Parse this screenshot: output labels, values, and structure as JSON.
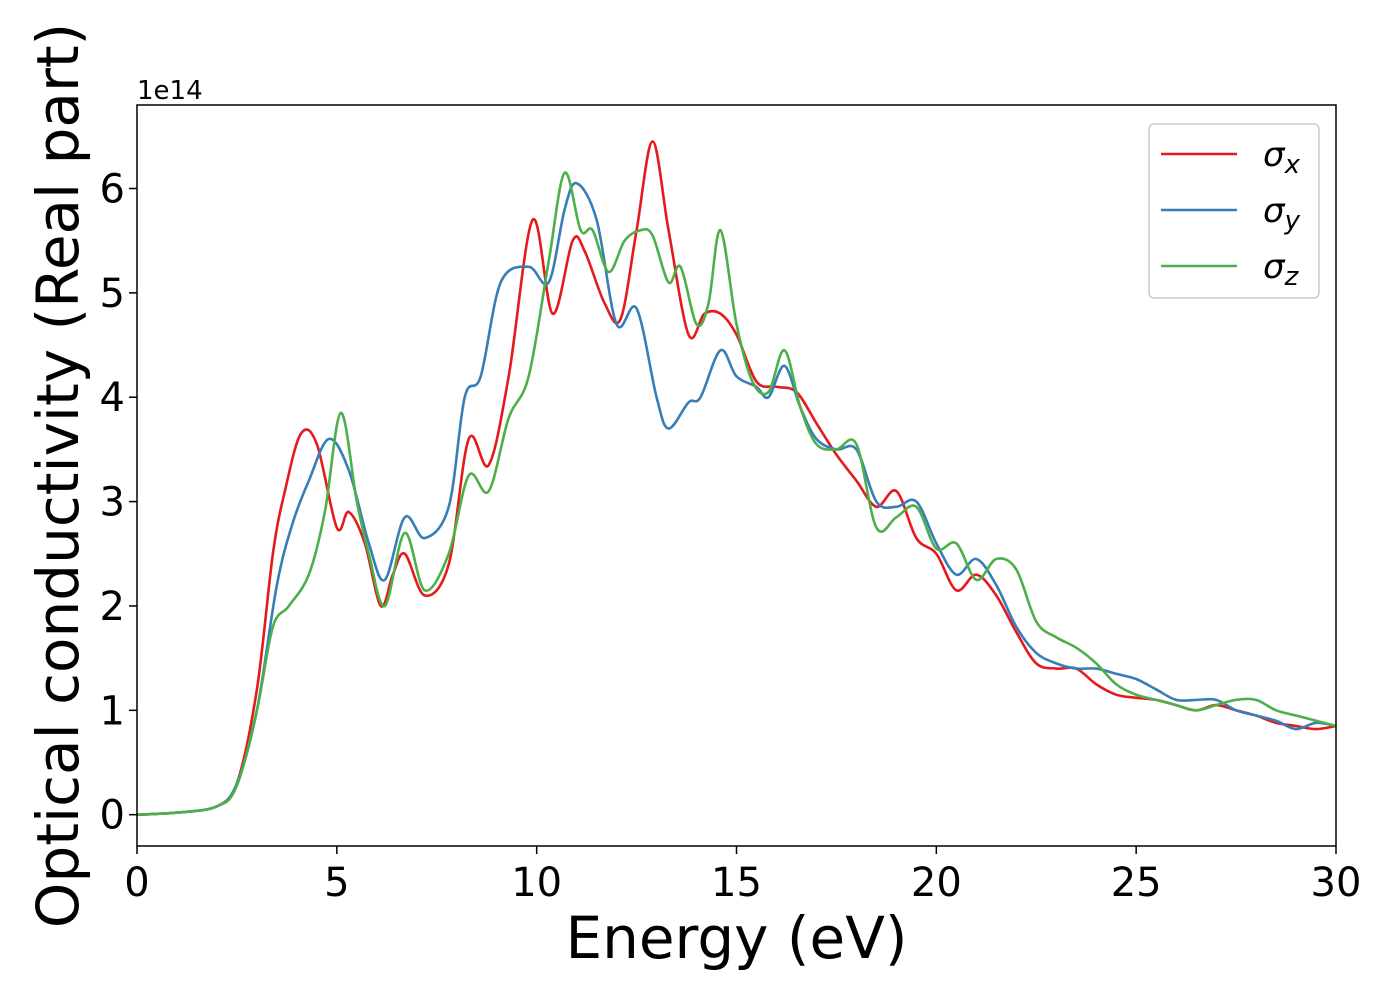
{
  "chart_data": {
    "type": "line",
    "xlabel": "Energy (eV)",
    "ylabel": "Optical conductivity (Real part)",
    "y_offset_text": "1e14",
    "xlim": [
      0,
      30
    ],
    "ylim": [
      -0.3,
      6.8
    ],
    "x_ticks": [
      0,
      5,
      10,
      15,
      20,
      25,
      30
    ],
    "x_tick_labels": [
      "0",
      "5",
      "10",
      "15",
      "20",
      "25",
      "30"
    ],
    "y_ticks": [
      0,
      1,
      2,
      3,
      4,
      5,
      6
    ],
    "y_tick_labels": [
      "0",
      "1",
      "2",
      "3",
      "4",
      "5",
      "6"
    ],
    "grid": false,
    "legend_position": "top-right",
    "series": [
      {
        "name": "σx",
        "legend_base": "σ",
        "legend_sub": "x",
        "color": "#e41a1c",
        "x": [
          0,
          1,
          2,
          2.5,
          3,
          3.4,
          3.7,
          4.1,
          4.5,
          5,
          5.3,
          5.7,
          6.1,
          6.4,
          6.7,
          7.2,
          7.8,
          8.3,
          8.8,
          9.3,
          9.9,
          10.4,
          10.9,
          11.2,
          11.7,
          12.1,
          12.5,
          12.9,
          13.3,
          13.8,
          14.2,
          14.6,
          15,
          15.5,
          16,
          16.5,
          17,
          17.5,
          18,
          18.5,
          19,
          19.5,
          20,
          20.5,
          21,
          21.5,
          22,
          22.5,
          23,
          23.5,
          24,
          24.5,
          25,
          25.5,
          26,
          26.5,
          27,
          27.5,
          28,
          28.5,
          29,
          29.5,
          30
        ],
        "y": [
          0,
          0.02,
          0.08,
          0.3,
          1.2,
          2.5,
          3.1,
          3.65,
          3.55,
          2.75,
          2.9,
          2.6,
          2.0,
          2.3,
          2.5,
          2.1,
          2.4,
          3.6,
          3.35,
          4.2,
          5.7,
          4.8,
          5.5,
          5.4,
          4.9,
          4.75,
          5.6,
          6.45,
          5.6,
          4.6,
          4.8,
          4.8,
          4.6,
          4.15,
          4.1,
          4.05,
          3.75,
          3.45,
          3.2,
          2.95,
          3.1,
          2.65,
          2.5,
          2.15,
          2.3,
          2.1,
          1.75,
          1.45,
          1.4,
          1.4,
          1.25,
          1.15,
          1.12,
          1.1,
          1.05,
          1.0,
          1.05,
          1.0,
          0.95,
          0.88,
          0.85,
          0.82,
          0.85
        ]
      },
      {
        "name": "σy",
        "legend_base": "σ",
        "legend_sub": "y",
        "color": "#377eb8",
        "x": [
          0,
          1,
          2,
          2.5,
          3,
          3.5,
          3.9,
          4.3,
          4.8,
          5.3,
          5.8,
          6.2,
          6.7,
          7.2,
          7.8,
          8.2,
          8.6,
          9.1,
          9.8,
          10.3,
          10.7,
          11.0,
          11.5,
          12.0,
          12.5,
          13.0,
          13.3,
          13.8,
          14.1,
          14.6,
          15.0,
          15.5,
          15.8,
          16.2,
          16.6,
          17,
          17.5,
          18,
          18.5,
          19,
          19.5,
          20,
          20.5,
          21,
          21.5,
          22,
          22.5,
          23,
          23.5,
          24,
          24.5,
          25,
          25.5,
          26,
          26.5,
          27,
          27.5,
          28,
          28.5,
          29,
          29.5,
          30
        ],
        "y": [
          0,
          0.02,
          0.08,
          0.3,
          1.0,
          2.2,
          2.8,
          3.2,
          3.6,
          3.3,
          2.6,
          2.25,
          2.85,
          2.65,
          2.95,
          4.0,
          4.2,
          5.1,
          5.25,
          5.1,
          5.8,
          6.05,
          5.7,
          4.7,
          4.85,
          4.0,
          3.7,
          3.95,
          4.0,
          4.45,
          4.2,
          4.1,
          4.0,
          4.3,
          3.9,
          3.6,
          3.5,
          3.5,
          3.0,
          2.95,
          3.0,
          2.6,
          2.3,
          2.45,
          2.2,
          1.8,
          1.55,
          1.45,
          1.4,
          1.4,
          1.35,
          1.3,
          1.2,
          1.1,
          1.1,
          1.1,
          1.0,
          0.95,
          0.9,
          0.82,
          0.88,
          0.85
        ]
      },
      {
        "name": "σz",
        "legend_base": "σ",
        "legend_sub": "z",
        "color": "#4daf4a",
        "x": [
          0,
          1,
          2,
          2.5,
          3,
          3.4,
          3.8,
          4.3,
          4.7,
          5.1,
          5.5,
          5.8,
          6.2,
          6.7,
          7.2,
          7.8,
          8.3,
          8.8,
          9.3,
          9.8,
          10.3,
          10.7,
          11.1,
          11.4,
          11.8,
          12.2,
          12.6,
          12.9,
          13.3,
          13.6,
          14.0,
          14.3,
          14.6,
          15.0,
          15.4,
          15.8,
          16.2,
          16.6,
          17,
          17.5,
          18,
          18.5,
          19,
          19.5,
          20,
          20.5,
          21,
          21.5,
          22,
          22.5,
          23,
          23.5,
          24,
          24.5,
          25,
          25.5,
          26,
          26.5,
          27,
          27.5,
          28,
          28.5,
          29,
          29.5,
          30
        ],
        "y": [
          0,
          0.02,
          0.08,
          0.28,
          1.0,
          1.8,
          2.0,
          2.3,
          2.9,
          3.85,
          3.0,
          2.5,
          2.0,
          2.7,
          2.15,
          2.5,
          3.25,
          3.1,
          3.8,
          4.2,
          5.3,
          6.15,
          5.6,
          5.6,
          5.2,
          5.5,
          5.6,
          5.55,
          5.1,
          5.25,
          4.7,
          4.9,
          5.6,
          4.7,
          4.15,
          4.05,
          4.45,
          3.9,
          3.55,
          3.5,
          3.55,
          2.75,
          2.85,
          2.95,
          2.55,
          2.6,
          2.25,
          2.45,
          2.35,
          1.85,
          1.7,
          1.6,
          1.45,
          1.25,
          1.15,
          1.1,
          1.05,
          1.0,
          1.05,
          1.1,
          1.1,
          1.0,
          0.95,
          0.9,
          0.85
        ]
      }
    ]
  }
}
